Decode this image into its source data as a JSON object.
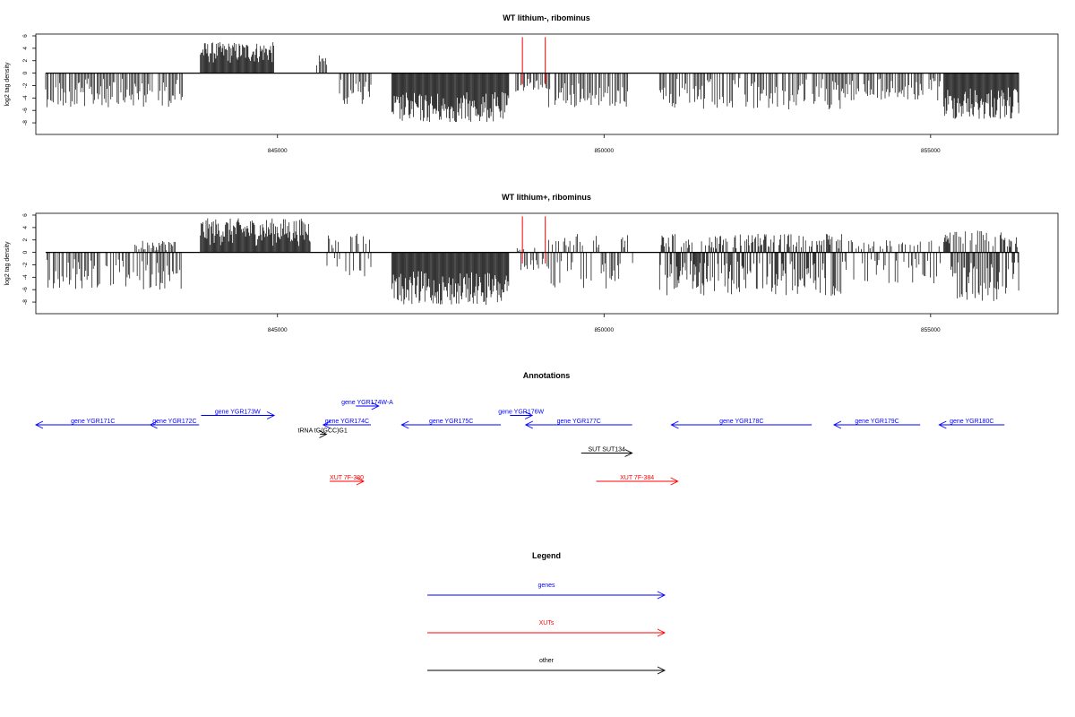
{
  "colors": {
    "genes": "#0000FF",
    "XUTs": "#FF0000",
    "other": "#000000",
    "signal": "#000000",
    "marker": "#FF0000"
  },
  "chart_data": [
    {
      "type": "bar",
      "title": "WT lithium-, ribominus",
      "ylabel": "log2 tag density",
      "xlim": [
        841300,
        856950
      ],
      "ylim": [
        -9,
        6
      ],
      "xticks": [
        845000,
        850000,
        855000
      ],
      "yticks": [
        -8,
        -6,
        -4,
        -2,
        0,
        2,
        4,
        6
      ],
      "grid": false,
      "baseline": 0,
      "markers": [
        848750,
        849100
      ],
      "signal_profile": [
        {
          "start": 841450,
          "end": 843550,
          "min": -5.5,
          "max": -0.8
        },
        {
          "start": 843820,
          "end": 844950,
          "min": 1.5,
          "max": 5.0
        },
        {
          "start": 845600,
          "end": 845800,
          "min": 0.5,
          "max": 3.0
        },
        {
          "start": 845950,
          "end": 846450,
          "min": -5.0,
          "max": -1.0
        },
        {
          "start": 846750,
          "end": 848550,
          "min": -8.0,
          "max": -3.0
        },
        {
          "start": 848650,
          "end": 849150,
          "min": -3.0,
          "max": -0.8
        },
        {
          "start": 849150,
          "end": 850450,
          "min": -5.5,
          "max": -0.8
        },
        {
          "start": 850850,
          "end": 853650,
          "min": -6.0,
          "max": -0.8
        },
        {
          "start": 853650,
          "end": 855150,
          "min": -4.5,
          "max": -0.8
        },
        {
          "start": 855200,
          "end": 856350,
          "min": -7.5,
          "max": -2.0
        }
      ]
    },
    {
      "type": "bar",
      "title": "WT lithium+, ribominus",
      "ylabel": "log2 tag density",
      "xlim": [
        841300,
        856950
      ],
      "ylim": [
        -9,
        6
      ],
      "xticks": [
        845000,
        850000,
        855000
      ],
      "yticks": [
        -8,
        -6,
        -4,
        -2,
        0,
        2,
        4,
        6
      ],
      "grid": false,
      "baseline": 0,
      "markers": [
        848750,
        849100
      ],
      "signal_profile": [
        {
          "start": 841450,
          "end": 843550,
          "min": -6.0,
          "max": -1.0
        },
        {
          "start": 842800,
          "end": 843450,
          "min": 0.3,
          "max": 2.0
        },
        {
          "start": 843820,
          "end": 845500,
          "min": 1.0,
          "max": 5.5
        },
        {
          "start": 845700,
          "end": 846450,
          "min": -4.0,
          "max": 3.0
        },
        {
          "start": 846750,
          "end": 848550,
          "min": -8.5,
          "max": -3.0
        },
        {
          "start": 848650,
          "end": 849150,
          "min": -3.0,
          "max": 1.0
        },
        {
          "start": 849150,
          "end": 850450,
          "min": -6.0,
          "max": 3.0
        },
        {
          "start": 850850,
          "end": 853650,
          "min": -7.0,
          "max": 3.0
        },
        {
          "start": 853650,
          "end": 855150,
          "min": -5.0,
          "max": 2.0
        },
        {
          "start": 855200,
          "end": 856350,
          "min": -8.0,
          "max": 3.5
        }
      ]
    }
  ],
  "annotations": {
    "title": "Annotations",
    "items": [
      {
        "label": "gene YGR171C",
        "class": "genes",
        "strand": "-",
        "start": 841300,
        "end": 843050,
        "row": 2
      },
      {
        "label": "gene YGR172C",
        "class": "genes",
        "strand": "-",
        "start": 843050,
        "end": 843800,
        "row": 2
      },
      {
        "label": "gene YGR173W",
        "class": "genes",
        "strand": "+",
        "start": 843830,
        "end": 844950,
        "row": 1
      },
      {
        "label": "gene YGR174W-A",
        "class": "genes",
        "strand": "+",
        "start": 846200,
        "end": 846550,
        "row": 0
      },
      {
        "label": "gene YGR174C",
        "class": "genes",
        "strand": "-",
        "start": 845700,
        "end": 846430,
        "row": 2
      },
      {
        "label": "tRNA tG(GCC)G1",
        "class": "other",
        "strand": "+",
        "start": 845650,
        "end": 845750,
        "row": 3
      },
      {
        "label": "gene YGR175C",
        "class": "genes",
        "strand": "-",
        "start": 846900,
        "end": 848420,
        "row": 2
      },
      {
        "label": "gene YGR176W",
        "class": "genes",
        "strand": "+",
        "start": 848560,
        "end": 848900,
        "row": 1
      },
      {
        "label": "gene YGR177C",
        "class": "genes",
        "strand": "-",
        "start": 848800,
        "end": 850430,
        "row": 2
      },
      {
        "label": "SUT SUT134",
        "class": "other",
        "strand": "+",
        "start": 849650,
        "end": 850430,
        "row": 5
      },
      {
        "label": "gene YGR178C",
        "class": "genes",
        "strand": "-",
        "start": 851030,
        "end": 853180,
        "row": 2
      },
      {
        "label": "gene YGR179C",
        "class": "genes",
        "strand": "-",
        "start": 853520,
        "end": 854840,
        "row": 2
      },
      {
        "label": "gene YGR180C",
        "class": "genes",
        "strand": "-",
        "start": 855130,
        "end": 856130,
        "row": 2
      },
      {
        "label": "XUT 7F-380",
        "class": "XUTs",
        "strand": "+",
        "start": 845800,
        "end": 846320,
        "row": 8
      },
      {
        "label": "XUT 7F-384",
        "class": "XUTs",
        "strand": "+",
        "start": 849880,
        "end": 851130,
        "row": 8
      }
    ]
  },
  "legend": {
    "title": "Legend",
    "items": [
      {
        "label": "genes",
        "class": "genes"
      },
      {
        "label": "XUTs",
        "class": "XUTs"
      },
      {
        "label": "other",
        "class": "other"
      }
    ]
  }
}
